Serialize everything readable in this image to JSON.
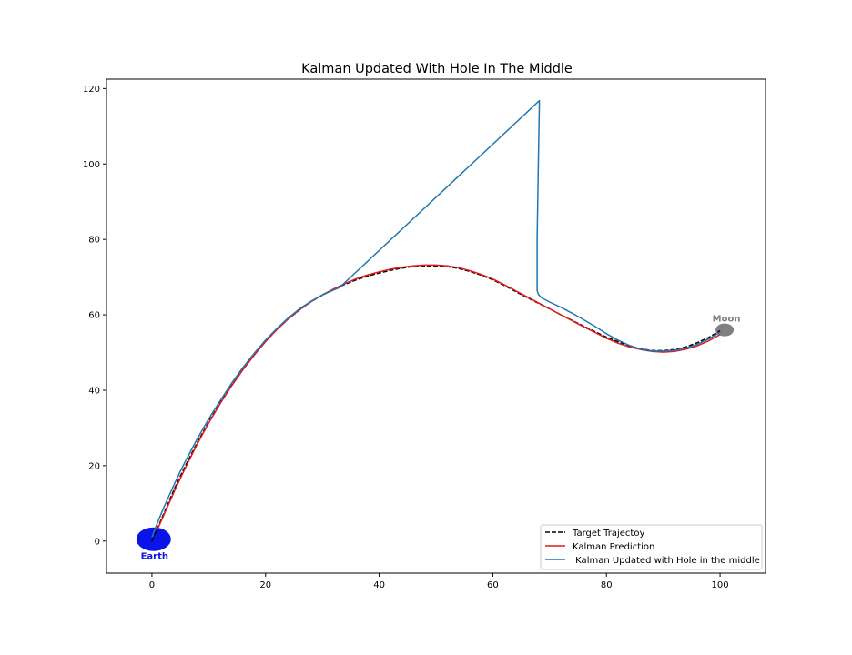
{
  "chart_data": {
    "type": "line",
    "title": "Kalman Updated With Hole In The Middle",
    "xlabel": "",
    "ylabel": "",
    "xlim": [
      -8,
      108
    ],
    "ylim": [
      -8.5,
      122.5
    ],
    "xticks": [
      0,
      20,
      40,
      60,
      80,
      100
    ],
    "yticks": [
      0,
      20,
      40,
      60,
      80,
      100,
      120
    ],
    "grid": false,
    "legend_position": "lower-right",
    "series": [
      {
        "name": "Target Trajectoy",
        "style": "dashed",
        "color": "#000000",
        "x": [
          0,
          1,
          2,
          3,
          4,
          5,
          6,
          8,
          10,
          12,
          14,
          16,
          18,
          20,
          22,
          24,
          26,
          28,
          30,
          32,
          34,
          36,
          38,
          40,
          42,
          44,
          46,
          48,
          50,
          52,
          54,
          56,
          58,
          60,
          62,
          64,
          66,
          68,
          70,
          72,
          74,
          76,
          78,
          80,
          82,
          84,
          86,
          88,
          90,
          92,
          94,
          96,
          98,
          100
        ],
        "y": [
          0,
          3.5,
          7,
          10.5,
          14,
          17.2,
          20.3,
          26.2,
          31.6,
          36.6,
          41.3,
          45.5,
          49.4,
          53.0,
          56.1,
          58.9,
          61.3,
          63.5,
          65.2,
          66.8,
          68.1,
          69.3,
          70.3,
          71.1,
          71.8,
          72.4,
          72.8,
          73.0,
          73.0,
          72.8,
          72.3,
          71.5,
          70.5,
          69.3,
          67.8,
          66.2,
          64.6,
          63.1,
          61.6,
          60.0,
          58.5,
          57.0,
          55.5,
          54.1,
          52.9,
          51.8,
          51.0,
          50.5,
          50.5,
          50.8,
          51.5,
          52.6,
          54.0,
          55.8
        ]
      },
      {
        "name": "Kalman Prediction",
        "style": "solid",
        "color": "#e41a1c",
        "x": [
          1,
          2,
          3,
          4,
          5,
          6,
          8,
          10,
          12,
          14,
          16,
          18,
          20,
          22,
          24,
          26,
          28,
          30,
          32,
          34,
          36,
          38,
          40,
          42,
          44,
          46,
          48,
          50,
          52,
          54,
          56,
          58,
          60,
          62,
          64,
          66,
          68,
          70,
          72,
          74,
          76,
          78,
          80,
          82,
          84,
          86,
          88,
          90,
          92,
          94,
          96,
          98,
          100
        ],
        "y": [
          3.2,
          6.6,
          10.0,
          13.4,
          16.6,
          19.8,
          25.8,
          31.3,
          36.4,
          41.1,
          45.4,
          49.3,
          52.9,
          56.1,
          58.9,
          61.4,
          63.5,
          65.3,
          66.9,
          68.3,
          69.6,
          70.6,
          71.4,
          72.1,
          72.6,
          73.0,
          73.2,
          73.2,
          73.0,
          72.5,
          71.7,
          70.7,
          69.5,
          68.0,
          66.4,
          64.8,
          63.2,
          61.6,
          60.0,
          58.4,
          56.8,
          55.3,
          53.8,
          52.5,
          51.5,
          50.8,
          50.3,
          50.1,
          50.3,
          50.9,
          51.8,
          53.1,
          54.8
        ]
      },
      {
        "name": " Kalman Updated with Hole in the middle",
        "style": "solid",
        "color": "#1f77b4",
        "x": [
          0,
          1,
          2,
          3,
          4,
          5,
          6,
          8,
          10,
          12,
          14,
          16,
          18,
          20,
          22,
          24,
          26,
          28,
          30,
          32,
          33,
          68.2,
          68.0,
          67.8,
          67.8,
          68.0,
          68.5,
          70,
          72,
          74,
          76,
          78,
          80,
          82,
          84,
          86,
          88,
          90,
          92,
          94,
          96,
          98,
          100
        ],
        "y": [
          1.0,
          5.0,
          8.6,
          12.0,
          15.3,
          18.5,
          21.5,
          27.2,
          32.4,
          37.2,
          41.8,
          46.0,
          49.8,
          53.3,
          56.4,
          59.2,
          61.6,
          63.6,
          65.3,
          66.6,
          67.2,
          116.8,
          98.0,
          80.0,
          66.5,
          65.5,
          64.6,
          63.4,
          62.0,
          60.4,
          58.7,
          56.9,
          55.0,
          53.3,
          51.9,
          50.9,
          50.4,
          50.4,
          50.6,
          51.2,
          52.2,
          53.6,
          55.4
        ]
      }
    ],
    "annotations": [
      {
        "label": "Earth",
        "x": 0.3,
        "y": 0.5,
        "color": "#0a14e6"
      },
      {
        "label": "Moon",
        "x": 100.8,
        "y": 56,
        "color": "#808080"
      }
    ]
  }
}
